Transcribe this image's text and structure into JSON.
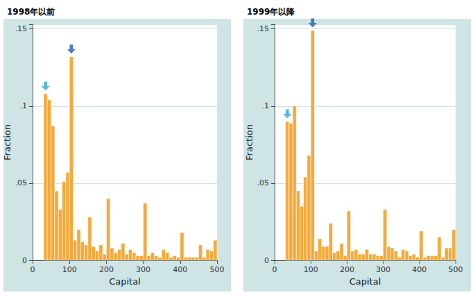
{
  "chart_data": [
    {
      "type": "histogram",
      "title": "1998年以前",
      "x_label": "Capital",
      "y_label": "Fraction",
      "bins": [
        30,
        40,
        50,
        60,
        70,
        80,
        90,
        100,
        110,
        120,
        130,
        140,
        150,
        160,
        170,
        180,
        190,
        200,
        210,
        220,
        230,
        240,
        250,
        260,
        270,
        280,
        290,
        300,
        310,
        320,
        330,
        340,
        350,
        360,
        370,
        380,
        390,
        400,
        410,
        420,
        430,
        440,
        450,
        460,
        470,
        480,
        490,
        500
      ],
      "values": [
        0.108,
        0.104,
        0.087,
        0.045,
        0.033,
        0.051,
        0.057,
        0.132,
        0.013,
        0.02,
        0.012,
        0.01,
        0.028,
        0.009,
        0.006,
        0.01,
        0.004,
        0.04,
        0.008,
        0.005,
        0.007,
        0.011,
        0.004,
        0.007,
        0.005,
        0.003,
        0.003,
        0.037,
        0.003,
        0.005,
        0.003,
        0.002,
        0.007,
        0.005,
        0.002,
        0.003,
        0.002,
        0.018,
        0.002,
        0.002,
        0.002,
        0.002,
        0.01,
        0.002,
        0.007,
        0.006,
        0.013
      ],
      "color": "#f5a93a",
      "xlim": [
        0,
        500
      ],
      "xticks": [
        0,
        100,
        200,
        300,
        400,
        500
      ],
      "ylim": [
        0,
        0.153
      ],
      "yticks": [
        0,
        {
          "value": 0.05,
          "label": ".05"
        },
        {
          "value": 0.1,
          "label": ".1"
        },
        {
          "value": 0.15,
          "label": ".15"
        }
      ],
      "grid": true,
      "arrows": [
        {
          "x": 30,
          "color": "#2aa8e0"
        },
        {
          "x": 100,
          "color": "#1d5fae"
        }
      ]
    },
    {
      "type": "histogram",
      "title": "1999年以降",
      "x_label": "Capital",
      "y_label": "Fraction",
      "bins": [
        30,
        40,
        50,
        60,
        70,
        80,
        90,
        100,
        110,
        120,
        130,
        140,
        150,
        160,
        170,
        180,
        190,
        200,
        210,
        220,
        230,
        240,
        250,
        260,
        270,
        280,
        290,
        300,
        310,
        320,
        330,
        340,
        350,
        360,
        370,
        380,
        390,
        400,
        410,
        420,
        430,
        440,
        450,
        460,
        470,
        480,
        490,
        500
      ],
      "values": [
        0.09,
        0.089,
        0.1,
        0.045,
        0.035,
        0.054,
        0.068,
        0.149,
        0.006,
        0.014,
        0.009,
        0.009,
        0.024,
        0.005,
        0.006,
        0.011,
        0.003,
        0.032,
        0.006,
        0.007,
        0.004,
        0.004,
        0.007,
        0.004,
        0.004,
        0.003,
        0.003,
        0.033,
        0.009,
        0.008,
        0.006,
        0.002,
        0.007,
        0.006,
        0.003,
        0.004,
        0.002,
        0.019,
        0.002,
        0.003,
        0.003,
        0.003,
        0.015,
        0.002,
        0.008,
        0.008,
        0.02
      ],
      "color": "#f5a93a",
      "xlim": [
        0,
        500
      ],
      "xticks": [
        0,
        100,
        200,
        300,
        400,
        500
      ],
      "ylim": [
        0,
        0.153
      ],
      "yticks": [
        0,
        {
          "value": 0.05,
          "label": ".05"
        },
        {
          "value": 0.1,
          "label": ".1"
        },
        {
          "value": 0.15,
          "label": ".15"
        }
      ],
      "grid": true,
      "arrows": [
        {
          "x": 30,
          "color": "#2aa8e0"
        },
        {
          "x": 100,
          "color": "#1d5fae"
        }
      ]
    }
  ]
}
